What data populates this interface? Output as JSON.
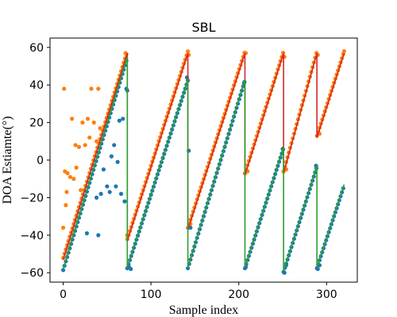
{
  "chart_data": {
    "type": "scatter",
    "title": "SBL",
    "xlabel": "Sample index",
    "ylabel": "DOA Estiamte(°)",
    "xlim": [
      -15,
      335
    ],
    "ylim": [
      -65,
      65
    ],
    "xticks": [
      0,
      100,
      200,
      300
    ],
    "yticks": [
      -60,
      -40,
      -20,
      0,
      20,
      40,
      60
    ],
    "grid": false,
    "colors": {
      "blue": "#1f77b4",
      "orange": "#ff7f0e",
      "green": "#2ca02c",
      "red": "#d62728"
    },
    "series": [
      {
        "kind": "line",
        "color": "#d62728",
        "x": [
          0,
          73,
          73,
          142,
          142,
          207,
          207,
          251,
          251,
          289,
          289,
          320
        ],
        "y": [
          -53,
          57,
          -43,
          57,
          -37,
          57,
          -8,
          57,
          -7,
          57,
          12,
          57
        ]
      },
      {
        "kind": "line",
        "color": "#2ca02c",
        "x": [
          0,
          73,
          73,
          142,
          142,
          207,
          207,
          251,
          251,
          289,
          289,
          320
        ],
        "y": [
          -58,
          55,
          -57,
          43,
          -57,
          43,
          -57,
          7,
          -59,
          -3,
          -57,
          -13
        ]
      },
      {
        "kind": "scatter",
        "color": "#ff7f0e",
        "x": [
          0,
          1,
          2,
          3,
          4,
          5,
          8,
          10,
          12,
          14,
          15,
          18,
          20,
          22,
          25,
          28,
          30,
          32,
          35,
          38,
          40,
          42
        ],
        "y": [
          -36,
          38,
          -6,
          -24,
          -17,
          -7,
          -9,
          22,
          -10,
          8,
          -4,
          7,
          -16,
          20,
          8,
          22,
          12,
          38,
          20,
          10,
          38,
          17
        ]
      },
      {
        "kind": "scatter",
        "color": "#1f77b4",
        "x": [
          27,
          38,
          40,
          43,
          46,
          50,
          53,
          55,
          58,
          60,
          62,
          64,
          66,
          68,
          70,
          72
        ],
        "y": [
          -39,
          -20,
          -40,
          -18,
          -5,
          -14,
          -17,
          2,
          8,
          -14,
          -1,
          21,
          -18,
          22,
          -22,
          38
        ]
      },
      {
        "kind": "scatter",
        "color": "#ff7f0e",
        "x": [
          71,
          73,
          143,
          145,
          208,
          210,
          252,
          254,
          290,
          292,
          320
        ],
        "y": [
          57,
          -40,
          56,
          -34,
          57,
          -6,
          55,
          -5,
          56,
          14,
          58
        ]
      },
      {
        "kind": "scatter",
        "color": "#1f77b4",
        "x": [
          73,
          75,
          77,
          141,
          143,
          145,
          206,
          208,
          250,
          252,
          254,
          288,
          290,
          292
        ],
        "y": [
          37,
          -57,
          -58,
          44,
          5,
          -36,
          41,
          -57,
          6,
          -60,
          -56,
          -3,
          -58,
          -56
        ]
      }
    ]
  }
}
